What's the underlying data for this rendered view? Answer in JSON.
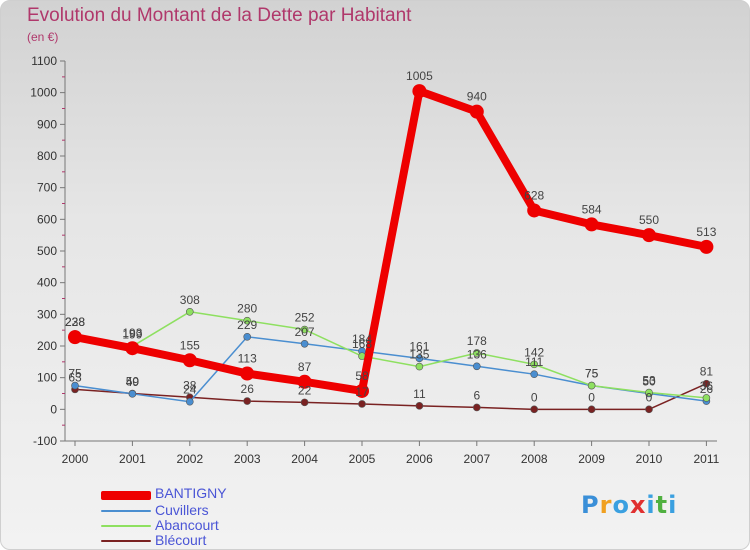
{
  "chart_data": {
    "type": "line",
    "title": "Evolution du Montant de la Dette par Habitant",
    "unit_label": "(en €)",
    "xlabel": "",
    "ylabel": "",
    "ylim": [
      -100,
      1100
    ],
    "y_ticks": [
      -100,
      0,
      100,
      200,
      300,
      400,
      500,
      600,
      700,
      800,
      900,
      1000,
      1100
    ],
    "categories": [
      "2000",
      "2001",
      "2002",
      "2003",
      "2004",
      "2005",
      "2006",
      "2007",
      "2008",
      "2009",
      "2010",
      "2011"
    ],
    "grid": false,
    "legend_position": "bottom-left",
    "series": [
      {
        "name": "BANTIGNY",
        "color": "#ee0000",
        "values": [
          228,
          193,
          155,
          113,
          87,
          58,
          1005,
          940,
          628,
          584,
          550,
          513
        ],
        "labels": [
          "228",
          "193",
          "155",
          "113",
          "87",
          "58",
          "1005",
          "940",
          "628",
          "584",
          "550",
          "513"
        ]
      },
      {
        "name": "Cuvillers",
        "color": "#4a8ed0",
        "values": [
          75,
          49,
          24,
          229,
          207,
          184,
          161,
          136,
          111,
          75,
          50,
          26
        ],
        "labels": [
          "75",
          "49",
          "24",
          "229",
          "207",
          "184",
          "161",
          "136",
          "111",
          "75",
          "50",
          "26"
        ]
      },
      {
        "name": "Abancourt",
        "color": "#8ee060",
        "values": [
          238,
          199,
          308,
          280,
          252,
          168,
          135,
          178,
          142,
          75,
          53,
          36
        ],
        "labels": [
          "238",
          "199",
          "308",
          "280",
          "252",
          "168",
          "135",
          "178",
          "142",
          "75",
          "53",
          "36"
        ]
      },
      {
        "name": "Blécourt",
        "color": "#7a2222",
        "values": [
          63,
          50,
          38,
          26,
          22,
          17,
          11,
          6,
          0,
          0,
          0,
          81
        ],
        "labels": [
          "63",
          "50",
          "38",
          "26",
          "22",
          "17",
          "11",
          "6",
          "0",
          "0",
          "0",
          "81"
        ]
      }
    ]
  },
  "brand": {
    "letters": [
      "P",
      "r",
      "o",
      "x",
      "i",
      "t",
      "i"
    ],
    "colors": [
      "#3a8fd8",
      "#f0a020",
      "#3aa0e0",
      "#e03030",
      "#3aa0e0",
      "#50b040",
      "#3aa0e0"
    ]
  }
}
